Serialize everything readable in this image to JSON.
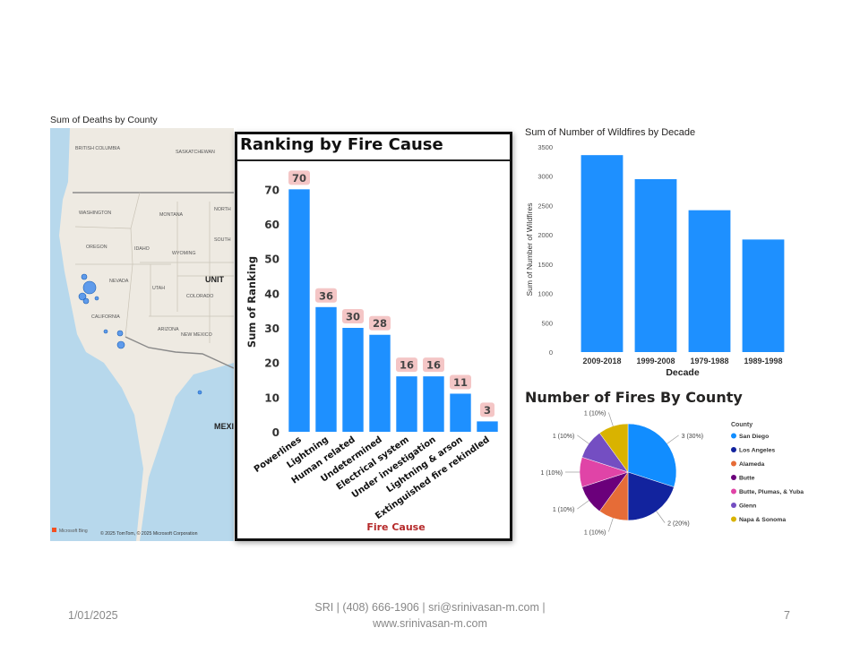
{
  "map": {
    "title": "Sum of Deaths by County",
    "labels": [
      "BRITISH COLUMBIA",
      "SASKATCHEWAN",
      "WASHINGTON",
      "MONTANA",
      "NORTH",
      "OREGON",
      "IDAHO",
      "WYOMING",
      "SOUTH",
      "NEVADA",
      "UTAH",
      "COLORADO",
      "UNIT",
      "CALIFORNIA",
      "ARIZONA",
      "NEW MEXICO",
      "MEXI"
    ],
    "attribution_brand": "Microsoft Bing",
    "attribution": "© 2025 TomTom, © 2025 Microsoft Corporation",
    "bubble_color": "#2f80ed"
  },
  "ranking": {
    "title": "Ranking by Fire Cause"
  },
  "decade": {
    "title": "Sum of Number of Wildfires by Decade"
  },
  "pie": {
    "title": "Number of Fires By County"
  },
  "chart_data": [
    {
      "type": "bar",
      "title": "Ranking by Fire Cause",
      "xlabel": "Fire Cause",
      "ylabel": "Sum of Ranking",
      "categories": [
        "Powerlines",
        "Lightning",
        "Human related",
        "Undetermined",
        "Electrical system",
        "Under investigation",
        "Lightning & arson",
        "Extinguished fire rekindled"
      ],
      "values": [
        70,
        36,
        30,
        28,
        16,
        16,
        11,
        3
      ],
      "ylim": [
        0,
        75
      ],
      "yticks": [
        0,
        10,
        20,
        30,
        40,
        50,
        60,
        70
      ],
      "data_labels": true,
      "bar_color": "#1e90ff",
      "label_bg": "#f4c6c6"
    },
    {
      "type": "bar",
      "title": "Sum of Number of Wildfires by Decade",
      "xlabel": "Decade",
      "ylabel": "Sum of Number of Wildfires",
      "categories": [
        "2009-2018",
        "1999-2008",
        "1979-1988",
        "1989-1998"
      ],
      "values": [
        3360,
        2950,
        2420,
        1920
      ],
      "ylim": [
        0,
        3500
      ],
      "yticks": [
        0,
        500,
        1000,
        1500,
        2000,
        2500,
        3000,
        3500
      ],
      "bar_color": "#1e90ff"
    },
    {
      "type": "pie",
      "title": "Number of Fires By County",
      "legend_title": "County",
      "legend_position": "right",
      "slices": [
        {
          "label": "San Diego",
          "value": 3,
          "display": "3 (30%)",
          "color": "#118dff"
        },
        {
          "label": "Los Angeles",
          "value": 2,
          "display": "2 (20%)",
          "color": "#12239e"
        },
        {
          "label": "Alameda",
          "value": 1,
          "display": "1 (10%)",
          "color": "#e66c37"
        },
        {
          "label": "Butte",
          "value": 1,
          "display": "1 (10%)",
          "color": "#6b007b"
        },
        {
          "label": "Butte, Plumas, & Yuba",
          "value": 1,
          "display": "1 (10%)",
          "color": "#e044a7"
        },
        {
          "label": "Glenn",
          "value": 1,
          "display": "1 (10%)",
          "color": "#744ec2"
        },
        {
          "label": "Napa & Sonoma",
          "value": 1,
          "display": "1 (10%)",
          "color": "#d9b300"
        }
      ]
    }
  ],
  "footer": {
    "date": "1/01/2025",
    "center_line1": "SRI | (408) 666-1906 | sri@srinivasan-m.com |",
    "center_line2": "www.srinivasan-m.com",
    "page": "7"
  }
}
